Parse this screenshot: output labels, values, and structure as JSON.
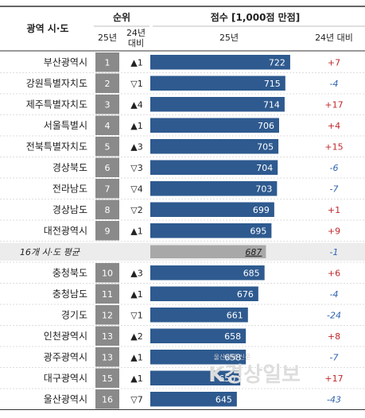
{
  "headers": {
    "region": "광역 시·도",
    "rank": "순위",
    "rank_25": "25년",
    "rank_24_line1": "24년",
    "rank_24_line2": "대비",
    "score": "점수 [1,000점 만점]",
    "score_25": "25년",
    "score_24": "24년 대비"
  },
  "colors": {
    "bar": "#2e5a8f",
    "rank_box": "#8a8a8a",
    "avg_bar": "#a8a8a8",
    "avg_bg": "#ececec",
    "positive": "#c0282d",
    "negative": "#2e64b0"
  },
  "watermark": {
    "main": "K경상일보",
    "small": "울산경제 신문"
  },
  "chart_data": {
    "type": "bar",
    "xlim": [
      520,
      760
    ],
    "rows": [
      {
        "region": "부산광역시",
        "rank": "1",
        "change": "▲1",
        "score": 722,
        "diff": "+7"
      },
      {
        "region": "강원특별자치도",
        "rank": "2",
        "change": "▽1",
        "score": 715,
        "diff": "-4"
      },
      {
        "region": "제주특별자치도",
        "rank": "3",
        "change": "▲4",
        "score": 714,
        "diff": "+17"
      },
      {
        "region": "서울특별시",
        "rank": "4",
        "change": "▲1",
        "score": 706,
        "diff": "+4"
      },
      {
        "region": "전북특별자치도",
        "rank": "5",
        "change": "▲3",
        "score": 705,
        "diff": "+15"
      },
      {
        "region": "경상북도",
        "rank": "6",
        "change": "▽3",
        "score": 704,
        "diff": "-6"
      },
      {
        "region": "전라남도",
        "rank": "7",
        "change": "▽4",
        "score": 703,
        "diff": "-7"
      },
      {
        "region": "경상남도",
        "rank": "8",
        "change": "▽2",
        "score": 699,
        "diff": "+1"
      },
      {
        "region": "대전광역시",
        "rank": "9",
        "change": "▲1",
        "score": 695,
        "diff": "+9"
      },
      {
        "region": "16개 시·도 평균",
        "rank": "",
        "change": "",
        "score": 687,
        "diff": "-1",
        "average": true
      },
      {
        "region": "충청북도",
        "rank": "10",
        "change": "▲3",
        "score": 685,
        "diff": "+6"
      },
      {
        "region": "충청남도",
        "rank": "11",
        "change": "▲1",
        "score": 676,
        "diff": "-4"
      },
      {
        "region": "경기도",
        "rank": "12",
        "change": "▽1",
        "score": 661,
        "diff": "-24"
      },
      {
        "region": "인천광역시",
        "rank": "13",
        "change": "▲2",
        "score": 658,
        "diff": "+8"
      },
      {
        "region": "광주광역시",
        "rank": "13",
        "change": "▲1",
        "score": 658,
        "diff": "-7"
      },
      {
        "region": "대구광역시",
        "rank": "15",
        "change": "▲1",
        "score": 650,
        "diff": "+17"
      },
      {
        "region": "울산광역시",
        "rank": "16",
        "change": "▽7",
        "score": 645,
        "diff": "-43"
      }
    ]
  }
}
